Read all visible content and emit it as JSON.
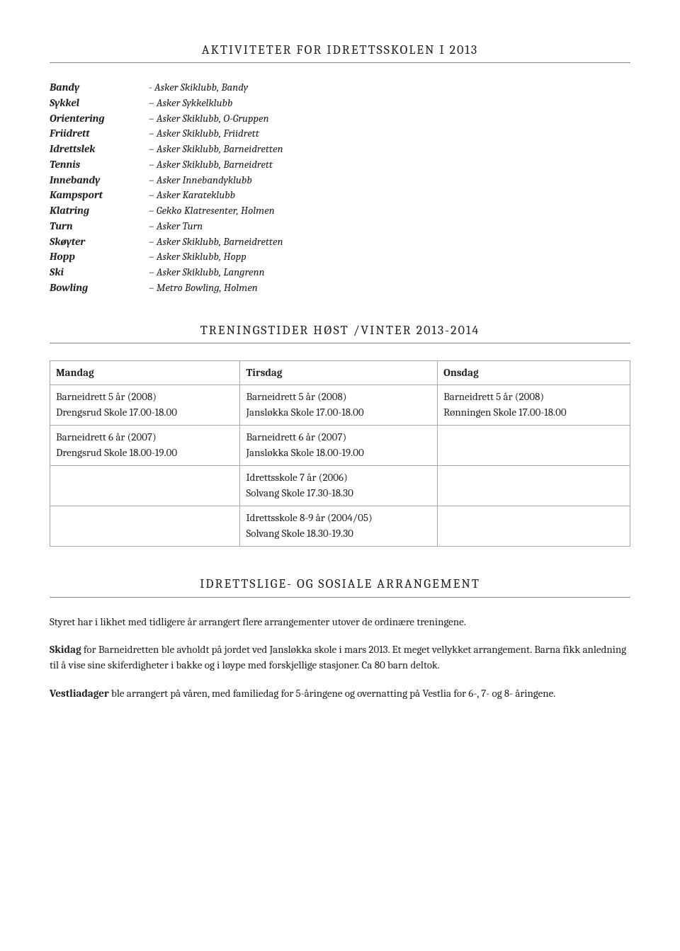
{
  "section1_title": "AKTIVITETER FOR IDRETTSSKOLEN I 2013",
  "activities": [
    {
      "label": "Bandy",
      "value": "- Asker Skiklubb, Bandy"
    },
    {
      "label": "Sykkel",
      "value": "– Asker Sykkelklubb"
    },
    {
      "label": "Orientering",
      "value": "– Asker Skiklubb, O-Gruppen"
    },
    {
      "label": "Friidrett",
      "value": "– Asker Skiklubb, Friidrett"
    },
    {
      "label": "Idrettslek",
      "value": "– Asker Skiklubb, Barneidretten"
    },
    {
      "label": "Tennis",
      "value": "– Asker Skiklubb, Barneidrett"
    },
    {
      "label": "Innebandy",
      "value": "– Asker Innebandyklubb"
    },
    {
      "label": "Kampsport",
      "value": "– Asker Karateklubb"
    },
    {
      "label": "Klatring",
      "value": "– Gekko Klatresenter, Holmen"
    },
    {
      "label": "Turn",
      "value": "– Asker Turn"
    },
    {
      "label": "Skøyter",
      "value": "– Asker Skiklubb, Barneidretten"
    },
    {
      "label": "Hopp",
      "value": "– Asker Skiklubb, Hopp"
    },
    {
      "label": "Ski",
      "value": "– Asker Skiklubb, Langrenn"
    },
    {
      "label": "Bowling",
      "value": "– Metro Bowling, Holmen"
    }
  ],
  "section2_title": "TRENINGSTIDER HØST /VINTER 2013-2014",
  "schedule": {
    "headers": [
      "Mandag",
      "Tirsdag",
      "Onsdag"
    ],
    "rows": [
      [
        "Barneidrett 5 år (2008)\nDrengsrud Skole  17.00-18.00",
        "Barneidrett 5 år (2008)\nJansløkka Skole   17.00-18.00",
        "Barneidrett 5 år (2008)\nRønningen Skole  17.00-18.00"
      ],
      [
        "Barneidrett 6 år (2007)\nDrengsrud Skole  18.00-19.00",
        "Barneidrett 6 år (2007)\nJansløkka Skole 18.00-19.00",
        ""
      ],
      [
        "",
        "Idrettsskole 7 år (2006)\nSolvang Skole  17.30-18.30",
        ""
      ],
      [
        "",
        "Idrettsskole 8-9 år (2004/05)\nSolvang Skole  18.30-19.30",
        ""
      ]
    ]
  },
  "section3_title": "IDRETTSLIGE- OG SOSIALE ARRANGEMENT",
  "para1": "Styret har i likhet med tidligere år arrangert flere arrangementer utover de ordinære treningene.",
  "para2_bold": "Skidag",
  "para2_rest": " for Barneidretten ble avholdt på jordet ved Jansløkka skole i mars 2013. Et meget vellykket arrangement. Barna fikk anledning til å vise sine skiferdigheter i bakke og i løype med forskjellige stasjoner. Ca 80 barn deltok.",
  "para3_bold": "Vestliadager",
  "para3_rest": " ble arrangert på våren, med familiedag for 5-åringene og overnatting på Vestlia for 6-, 7- og 8- åringene."
}
